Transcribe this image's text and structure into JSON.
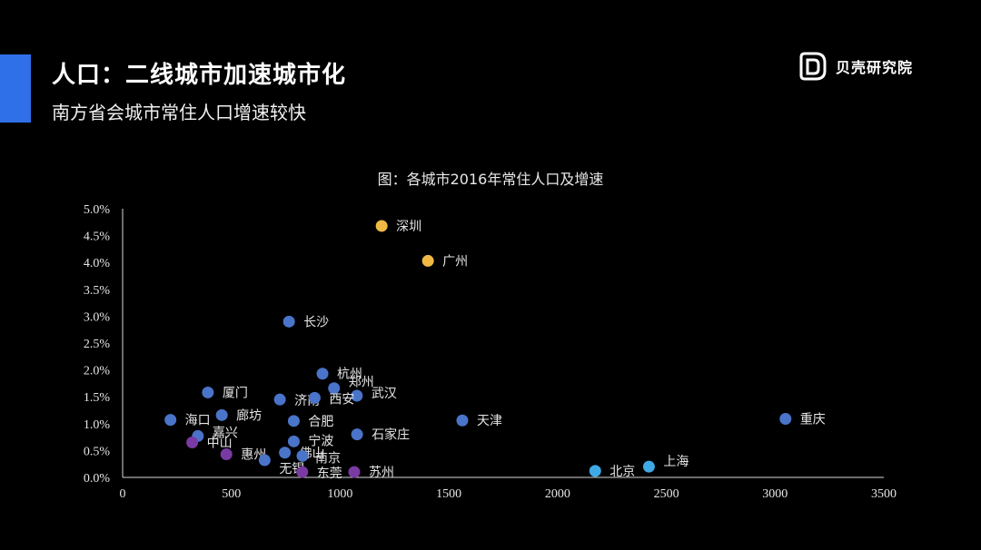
{
  "header": {
    "title": "人口：二线城市加速城市化",
    "subtitle": "南方省会城市常住人口增速较快"
  },
  "brand": {
    "name": "贝壳研究院",
    "icon": "shell-logo-icon"
  },
  "colors": {
    "accent": "#2f6fe8",
    "point_default": "#4a74c9",
    "point_gold": "#f0b944",
    "point_purple": "#7a3aa3",
    "point_lightblue": "#3fa9e6"
  },
  "chart_data": {
    "type": "scatter",
    "title": "图：各城市2016年常住人口及增速",
    "xlabel": "",
    "ylabel": "",
    "xlim": [
      0,
      3500
    ],
    "ylim": [
      0,
      0.05
    ],
    "x_ticks": [
      "0",
      "500",
      "1000",
      "1500",
      "2000",
      "2500",
      "3000",
      "3500"
    ],
    "y_ticks": [
      "0.0%",
      "0.5%",
      "1.0%",
      "1.5%",
      "2.0%",
      "2.5%",
      "3.0%",
      "3.5%",
      "4.0%",
      "4.5%",
      "5.0%"
    ],
    "grid": false,
    "points": [
      {
        "label": "深圳",
        "x": 1191,
        "y": 0.0468,
        "group": "gold"
      },
      {
        "label": "广州",
        "x": 1404,
        "y": 0.0403,
        "group": "gold"
      },
      {
        "label": "长沙",
        "x": 765,
        "y": 0.029,
        "group": "default"
      },
      {
        "label": "杭州",
        "x": 919,
        "y": 0.0193,
        "group": "default"
      },
      {
        "label": "郑州",
        "x": 972,
        "y": 0.0166,
        "group": "default"
      },
      {
        "label": "武汉",
        "x": 1077,
        "y": 0.0152,
        "group": "default"
      },
      {
        "label": "厦门",
        "x": 392,
        "y": 0.0158,
        "group": "default"
      },
      {
        "label": "济南",
        "x": 723,
        "y": 0.0145,
        "group": "default"
      },
      {
        "label": "西安",
        "x": 883,
        "y": 0.0148,
        "group": "default"
      },
      {
        "label": "廊坊",
        "x": 456,
        "y": 0.0116,
        "group": "default"
      },
      {
        "label": "合肥",
        "x": 787,
        "y": 0.0105,
        "group": "default"
      },
      {
        "label": "海口",
        "x": 220,
        "y": 0.0107,
        "group": "default"
      },
      {
        "label": "天津",
        "x": 1562,
        "y": 0.0106,
        "group": "default"
      },
      {
        "label": "重庆",
        "x": 3048,
        "y": 0.0109,
        "group": "default"
      },
      {
        "label": "石家庄",
        "x": 1078,
        "y": 0.008,
        "group": "default"
      },
      {
        "label": "嘉兴",
        "x": 346,
        "y": 0.0077,
        "group": "default"
      },
      {
        "label": "宁波",
        "x": 787,
        "y": 0.0067,
        "group": "default"
      },
      {
        "label": "中山",
        "x": 320,
        "y": 0.0065,
        "group": "purple"
      },
      {
        "label": "惠州",
        "x": 477,
        "y": 0.0043,
        "group": "purple"
      },
      {
        "label": "佛山",
        "x": 746,
        "y": 0.0046,
        "group": "default"
      },
      {
        "label": "南京",
        "x": 827,
        "y": 0.004,
        "group": "default"
      },
      {
        "label": "无锡",
        "x": 653,
        "y": 0.0032,
        "group": "default"
      },
      {
        "label": "东莞",
        "x": 826,
        "y": 0.001,
        "group": "purple"
      },
      {
        "label": "苏州",
        "x": 1065,
        "y": 0.001,
        "group": "purple"
      },
      {
        "label": "北京",
        "x": 2173,
        "y": 0.0012,
        "group": "lightblue"
      },
      {
        "label": "上海",
        "x": 2420,
        "y": 0.002,
        "group": "lightblue"
      }
    ]
  }
}
